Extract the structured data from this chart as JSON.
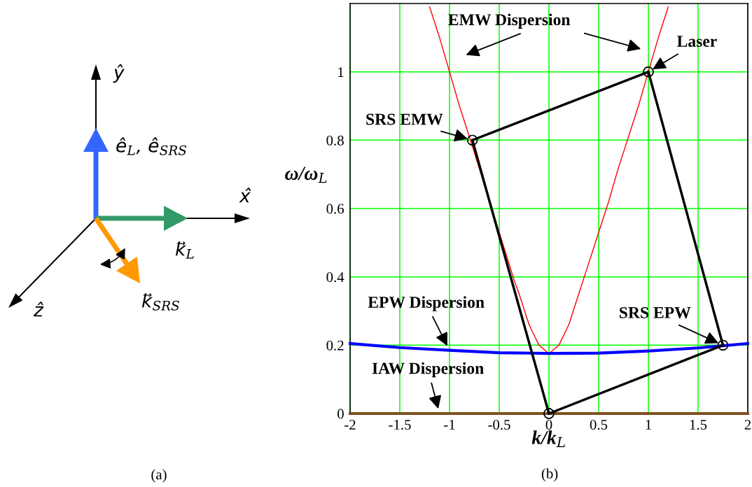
{
  "chart_data": [
    {
      "type": "other",
      "annotations": [
        "ŷ",
        "ê$_{L}$, ê$_{SRS}$",
        "x̂",
        "k⃗$_{L}$",
        "ẑ",
        "k⃗$_{SRS}$",
        "(a)"
      ]
    },
    {
      "type": "line",
      "xlabel": "k/k$_{L}$",
      "ylabel": "ω/ω$_{L}$",
      "xlim": [
        -2,
        2
      ],
      "ylim": [
        0,
        1.2
      ],
      "xticks": [
        -2,
        -1.5,
        -1,
        -0.5,
        0,
        0.5,
        1,
        1.5,
        2
      ],
      "yticks": [
        0,
        0.2,
        0.4,
        0.6,
        0.8,
        1
      ],
      "grid": true,
      "legend": false,
      "series": [
        {
          "color": "#ff0000",
          "x": [
            -1.2,
            -1.1,
            -1.0,
            -0.9,
            -0.8,
            -0.35,
            -0.3,
            -0.2,
            -0.1,
            0,
            0.1,
            0.2,
            0.3,
            0.4,
            0.5,
            0.6,
            0.7,
            0.8,
            0.9,
            1.0,
            1.1,
            1.2
          ],
          "values": [
            1.19,
            1.1,
            1.0,
            0.9,
            0.81,
            0.39,
            0.35,
            0.26,
            0.2,
            0.175,
            0.2,
            0.26,
            0.35,
            0.44,
            0.53,
            0.62,
            0.72,
            0.81,
            0.9,
            1.0,
            1.1,
            1.19
          ],
          "line_style": "solid",
          "marker": "none"
        },
        {
          "color": "#0000ff",
          "x": [
            -2,
            -1.5,
            -1,
            -0.5,
            0,
            0.5,
            1,
            1.5,
            2
          ],
          "values": [
            0.205,
            0.193,
            0.185,
            0.178,
            0.176,
            0.177,
            0.183,
            0.192,
            0.205
          ],
          "line_style": "solid",
          "marker": "none"
        },
        {
          "color": "#7f4f1f",
          "x": [
            -2,
            2
          ],
          "values": [
            0,
            0
          ],
          "line_style": "solid",
          "marker": "none"
        },
        {
          "color": "#000000",
          "x": [
            -0.77,
            0
          ],
          "values": [
            0.8,
            0
          ],
          "line_style": "solid",
          "marker": "circle"
        },
        {
          "color": "#000000",
          "x": [
            -0.77,
            1
          ],
          "values": [
            0.8,
            1
          ],
          "line_style": "solid",
          "marker": "circle"
        },
        {
          "color": "#000000",
          "x": [
            1,
            1.75
          ],
          "values": [
            1,
            0.2
          ],
          "line_style": "solid",
          "marker": "circle"
        },
        {
          "color": "#000000",
          "x": [
            0,
            1.75
          ],
          "values": [
            0,
            0.2
          ],
          "line_style": "solid",
          "marker": "circle"
        }
      ],
      "annotations": [
        "EMW Dispersion",
        {
          "text": "Laser",
          "x": 1,
          "y": 1
        },
        {
          "text": "SRS EMW",
          "x": -0.77,
          "y": 0.8
        },
        {
          "text": "EPW Dispersion",
          "x": -1,
          "y": 0.185
        },
        {
          "text": "SRS EPW",
          "x": 1.75,
          "y": 0.2
        },
        {
          "text": "IAW Dispersion",
          "x": -1.1,
          "y": 0
        },
        "(b)"
      ]
    }
  ]
}
